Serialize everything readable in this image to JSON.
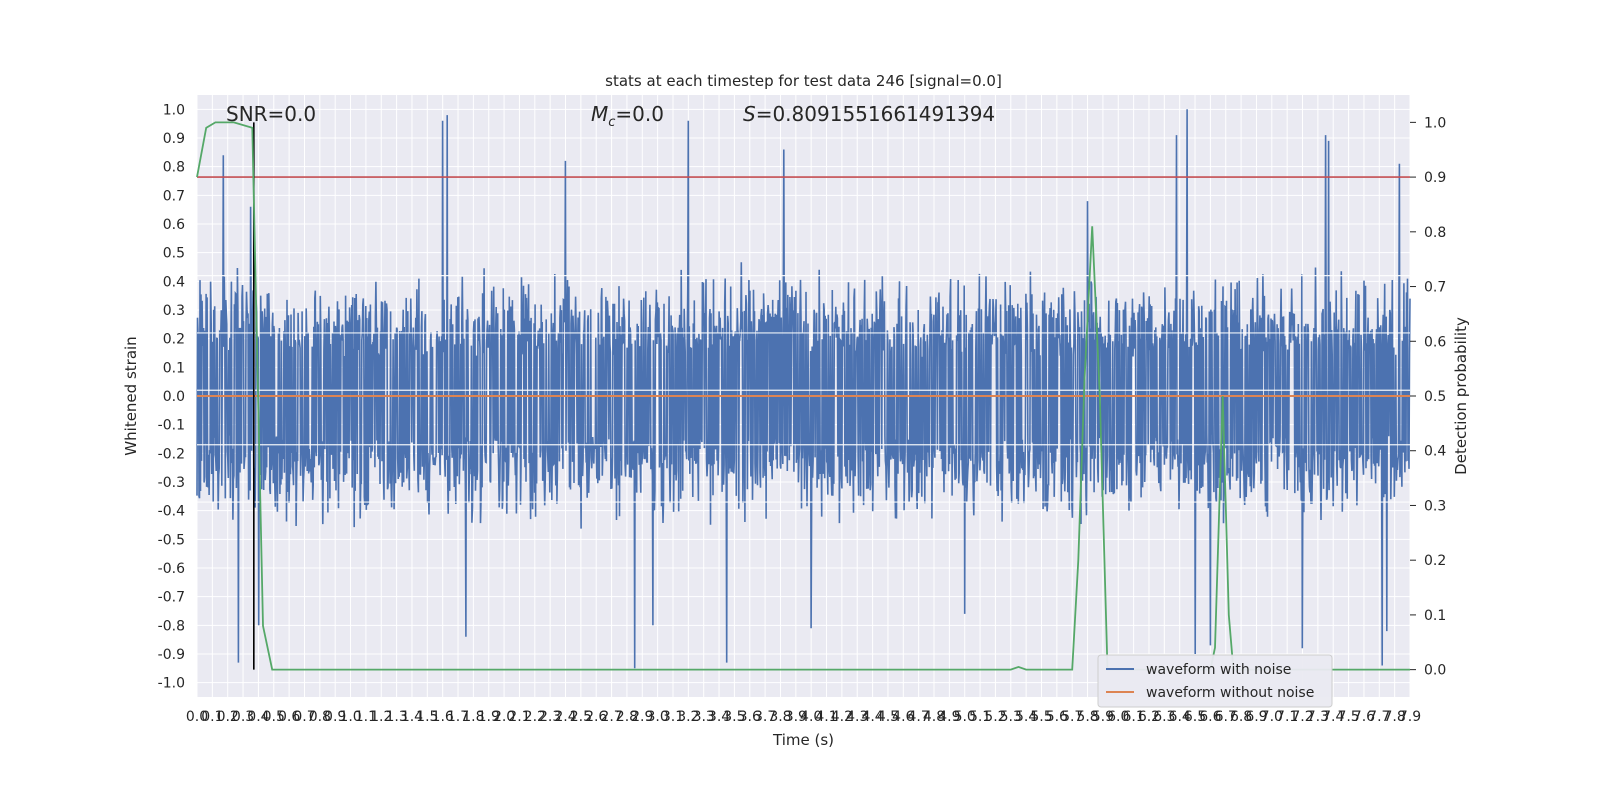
{
  "chart_data": {
    "type": "line",
    "title": "stats at each timestep for test data 246 [signal=0.0]",
    "xlabel": "Time (s)",
    "ylabel_left": "Whitened strain",
    "ylabel_right": "Detection probability",
    "xlim": [
      0.0,
      7.9
    ],
    "ylim_left": [
      -1.05,
      1.05
    ],
    "ylim_right": [
      -0.05,
      1.05
    ],
    "x_ticks": [
      "0.0",
      "0.1",
      "0.2",
      "0.3",
      "0.4",
      "0.5",
      "0.6",
      "0.7",
      "0.8",
      "0.9",
      "1.0",
      "1.1",
      "1.2",
      "1.3",
      "1.4",
      "1.5",
      "1.6",
      "1.7",
      "1.8",
      "1.9",
      "2.0",
      "2.1",
      "2.2",
      "2.3",
      "2.4",
      "2.5",
      "2.6",
      "2.7",
      "2.8",
      "2.9",
      "3.0",
      "3.1",
      "3.2",
      "3.3",
      "3.4",
      "3.5",
      "3.6",
      "3.7",
      "3.8",
      "3.9",
      "4.0",
      "4.1",
      "4.2",
      "4.3",
      "4.4",
      "4.5",
      "4.6",
      "4.7",
      "4.8",
      "4.9",
      "5.0",
      "5.1",
      "5.2",
      "5.3",
      "5.4",
      "5.5",
      "5.6",
      "5.7",
      "5.8",
      "5.9",
      "6.0",
      "6.1",
      "6.2",
      "6.3",
      "6.4",
      "6.5",
      "6.6",
      "6.7",
      "6.8",
      "6.9",
      "7.0",
      "7.1",
      "7.2",
      "7.3",
      "7.4",
      "7.5",
      "7.6",
      "7.7",
      "7.8",
      "7.9"
    ],
    "y_ticks_left": [
      "1.0",
      "0.9",
      "0.8",
      "0.7",
      "0.6",
      "0.5",
      "0.4",
      "0.3",
      "0.2",
      "0.1",
      "0.0",
      "-0.1",
      "-0.2",
      "-0.3",
      "-0.4",
      "-0.5",
      "-0.6",
      "-0.7",
      "-0.8",
      "-0.9",
      "-1.0"
    ],
    "y_ticks_right": [
      "1.0",
      "0.9",
      "0.8",
      "0.7",
      "0.6",
      "0.5",
      "0.4",
      "0.3",
      "0.2",
      "0.1",
      "0.0"
    ],
    "annotations": {
      "snr": "SNR=0.0",
      "mc": "=0.0",
      "s": "=0.8091551661491394"
    },
    "threshold": 0.9,
    "detection_marker_time": 0.37,
    "series": [
      {
        "name": "waveform with noise",
        "color": "#4c72b0",
        "description_values": "dense whitened noise; typical envelope about +/-0.45 with spikes up to ~0.98 and down to ~-0.95",
        "spikes": [
          [
            0.17,
            0.84
          ],
          [
            0.27,
            -0.93
          ],
          [
            0.35,
            0.66
          ],
          [
            0.4,
            -0.8
          ],
          [
            1.6,
            0.96
          ],
          [
            1.63,
            0.98
          ],
          [
            1.75,
            -0.84
          ],
          [
            2.4,
            0.82
          ],
          [
            2.85,
            -0.95
          ],
          [
            2.97,
            -0.8
          ],
          [
            3.2,
            0.96
          ],
          [
            3.45,
            -0.93
          ],
          [
            3.82,
            0.86
          ],
          [
            4.0,
            -0.81
          ],
          [
            5.0,
            -0.76
          ],
          [
            5.8,
            0.68
          ],
          [
            6.45,
            1.0
          ],
          [
            6.38,
            0.91
          ],
          [
            6.5,
            -0.9
          ],
          [
            6.6,
            -0.87
          ],
          [
            7.2,
            -0.88
          ],
          [
            7.35,
            0.91
          ],
          [
            7.37,
            0.89
          ],
          [
            7.72,
            -0.94
          ],
          [
            7.83,
            0.81
          ],
          [
            7.75,
            -0.82
          ]
        ]
      },
      {
        "name": "waveform without noise",
        "color": "#dd8452",
        "values_constant": 0.0
      },
      {
        "name": "detection probability",
        "color": "#55a868",
        "axis": "right",
        "points": [
          [
            0.0,
            0.9
          ],
          [
            0.06,
            0.99
          ],
          [
            0.12,
            1.0
          ],
          [
            0.18,
            1.0
          ],
          [
            0.24,
            1.0
          ],
          [
            0.36,
            0.99
          ],
          [
            0.43,
            0.08
          ],
          [
            0.49,
            0.0
          ],
          [
            1.0,
            0.0
          ],
          [
            2.0,
            0.0
          ],
          [
            3.0,
            0.0
          ],
          [
            4.0,
            0.0
          ],
          [
            5.0,
            0.0
          ],
          [
            5.3,
            0.0
          ],
          [
            5.35,
            0.005
          ],
          [
            5.4,
            0.0
          ],
          [
            5.7,
            0.0
          ],
          [
            5.74,
            0.2
          ],
          [
            5.78,
            0.53
          ],
          [
            5.83,
            0.81
          ],
          [
            5.88,
            0.5
          ],
          [
            5.93,
            0.0
          ],
          [
            6.6,
            0.0
          ],
          [
            6.63,
            0.04
          ],
          [
            6.68,
            0.5
          ],
          [
            6.72,
            0.1
          ],
          [
            6.75,
            0.0
          ],
          [
            7.3,
            0.0
          ],
          [
            7.9,
            0.0
          ]
        ]
      }
    ],
    "legend": {
      "placement": "lower-right",
      "entries": [
        {
          "label": "waveform with noise",
          "color": "#4c72b0"
        },
        {
          "label": "waveform without noise",
          "color": "#dd8452"
        }
      ]
    },
    "grid": true,
    "colors": {
      "plot_background": "#eaeaf2",
      "grid": "#ffffff",
      "threshold_line": "#c44e52",
      "marker_line": "#000000"
    }
  }
}
